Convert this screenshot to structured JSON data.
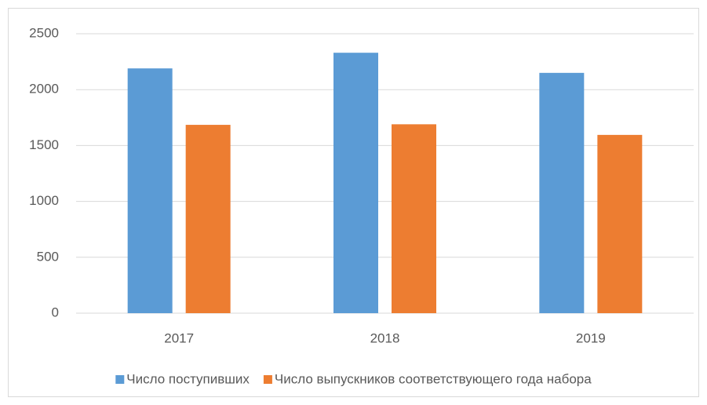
{
  "chart_data": {
    "type": "bar",
    "categories": [
      "2017",
      "2018",
      "2019"
    ],
    "series": [
      {
        "name": "Число поступивших",
        "color": "#5b9bd5",
        "values": [
          2190,
          2330,
          2150
        ]
      },
      {
        "name": "Число выпускников соответствующего года набора",
        "color": "#ed7d31",
        "values": [
          1685,
          1690,
          1595
        ]
      }
    ],
    "ylim": [
      0,
      2500
    ],
    "yticks": [
      0,
      500,
      1000,
      1500,
      2000,
      2500
    ],
    "grid": true,
    "legend": "bottom"
  }
}
